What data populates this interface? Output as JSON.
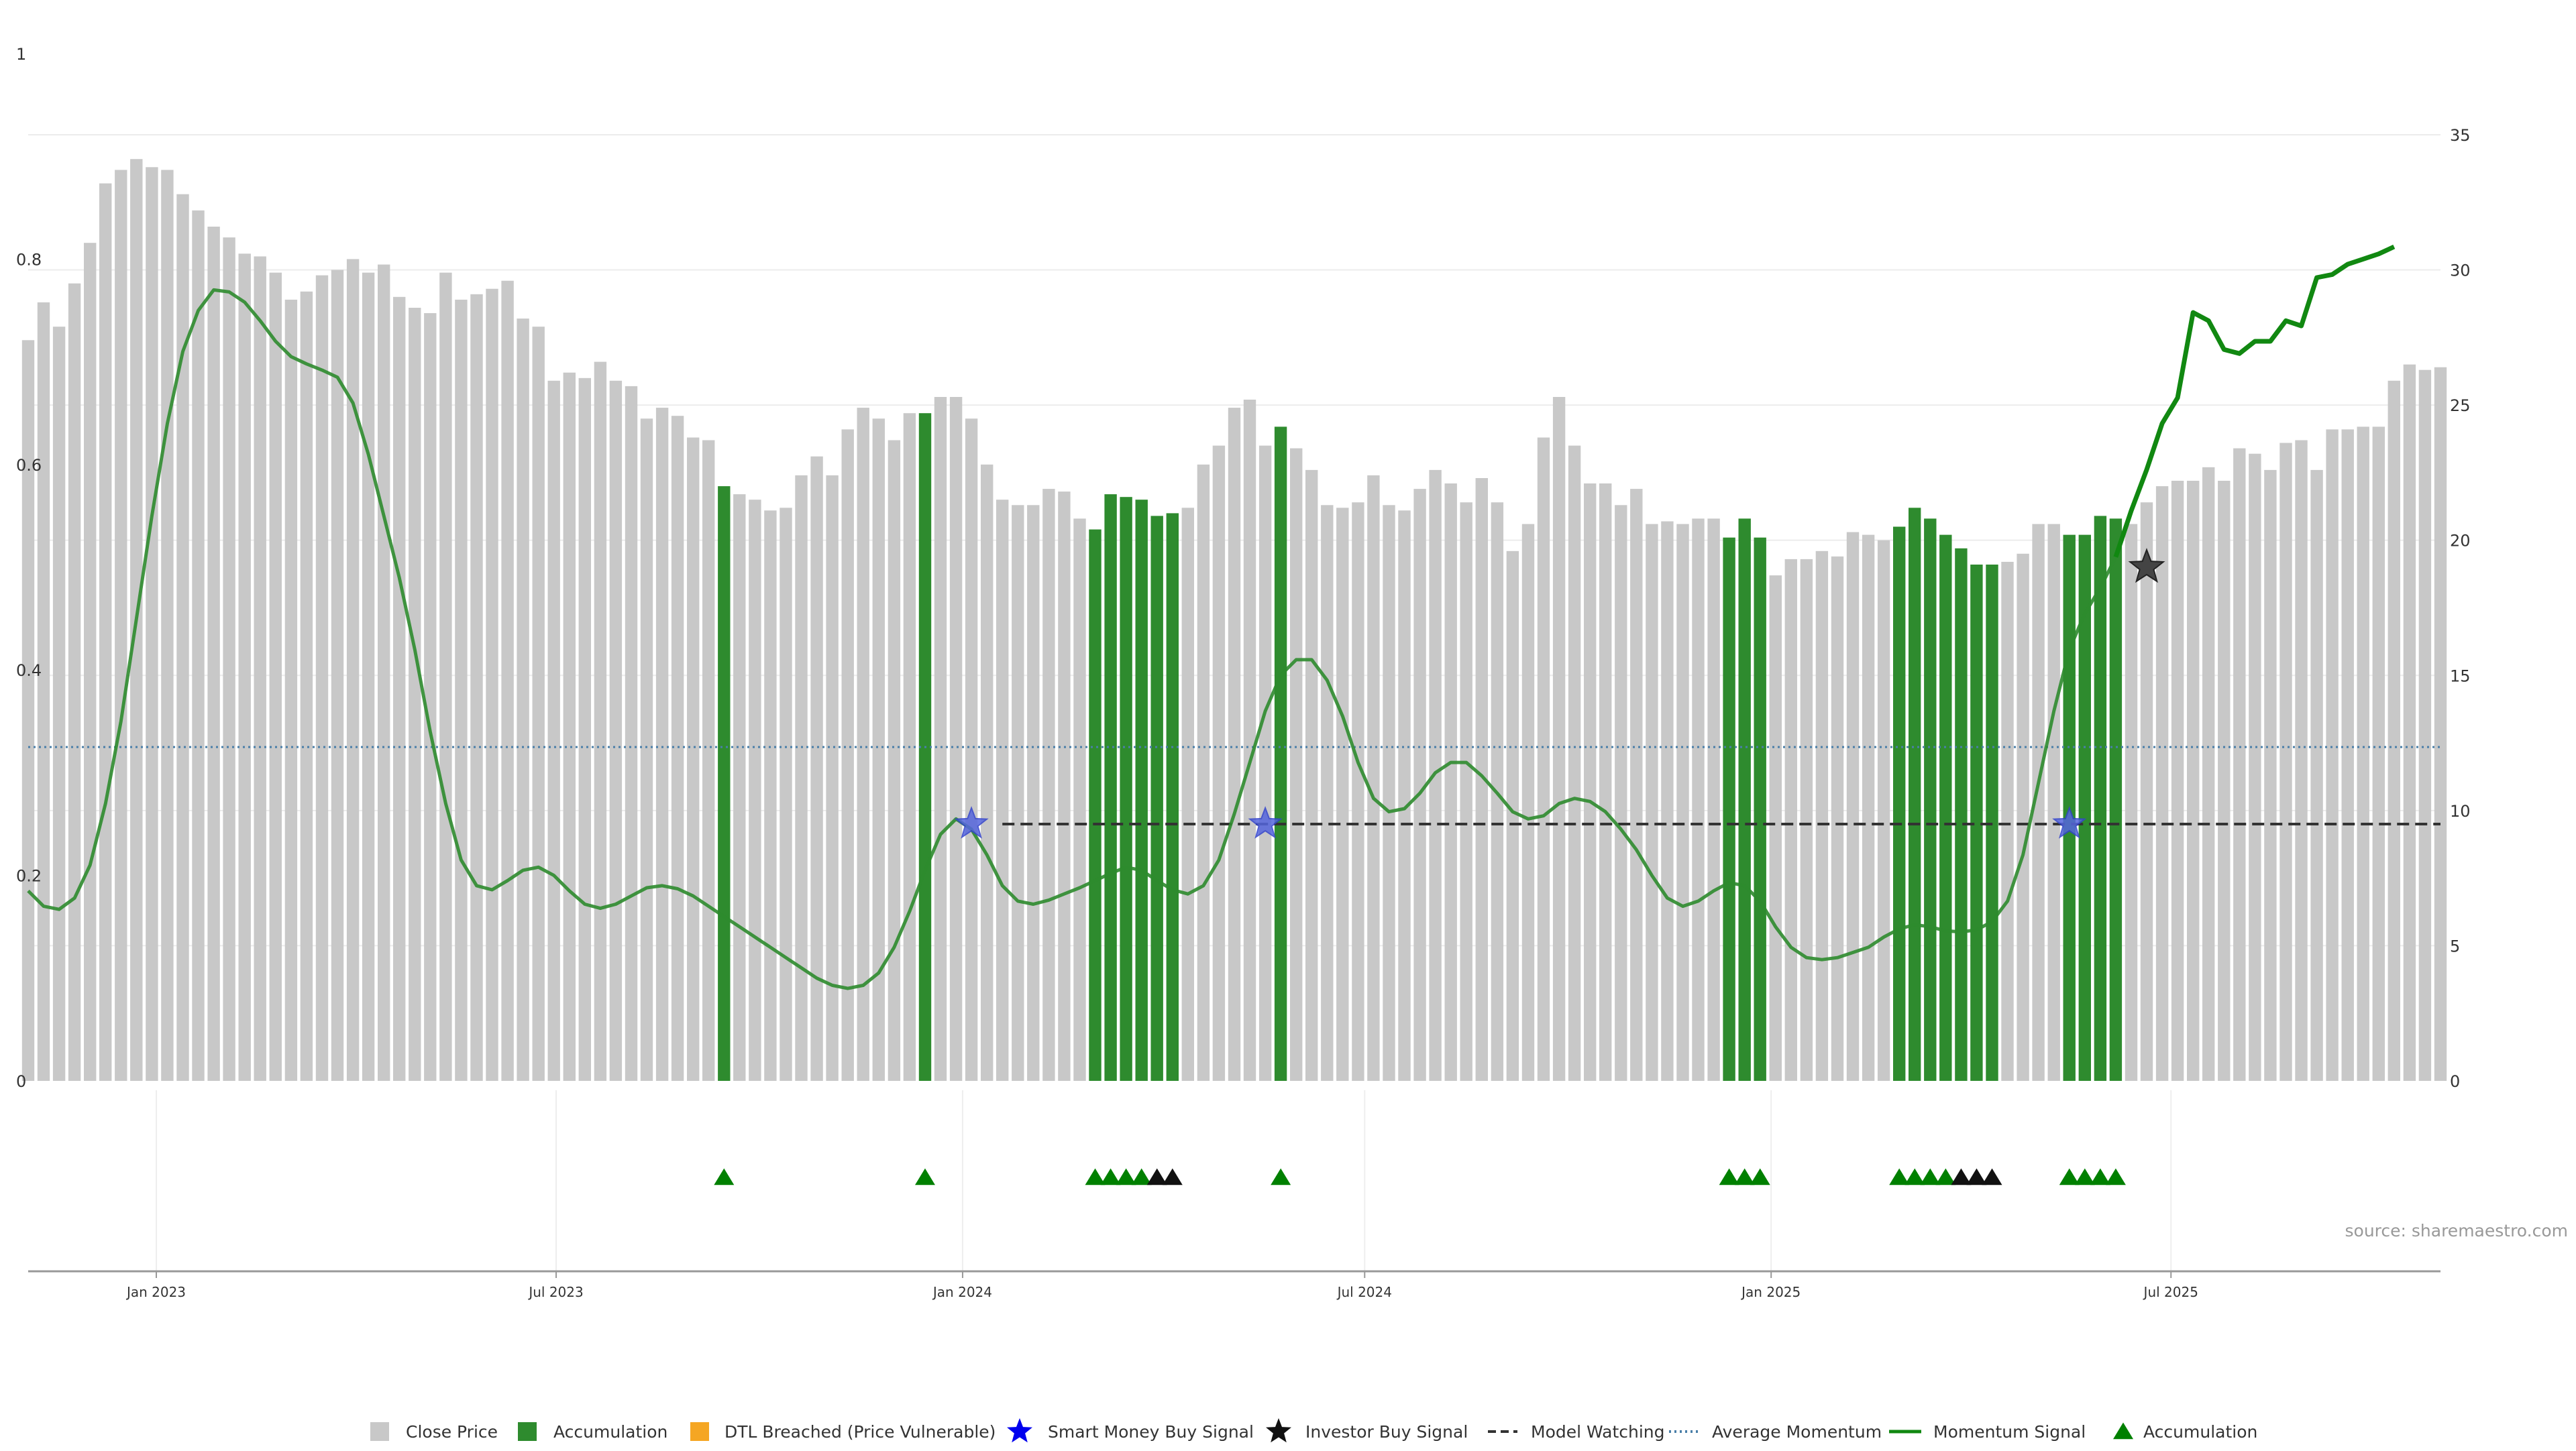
{
  "chart_data": {
    "type": "bar",
    "source": "source: sharemaestro.com",
    "left_axis": {
      "ticks": [
        0,
        0.2,
        0.4,
        0.6,
        0.8,
        1
      ],
      "tick_labels": [
        "0",
        "0.2",
        "0.4",
        "0.6",
        "0.8",
        "1"
      ],
      "ylim": [
        0,
        1
      ]
    },
    "right_axis": {
      "ticks": [
        0,
        5,
        10,
        15,
        20,
        25,
        30,
        35
      ],
      "tick_labels": [
        "0",
        "5",
        "10",
        "15",
        "20",
        "25",
        "30",
        "35"
      ],
      "ylim": [
        0,
        38
      ]
    },
    "x_axis": {
      "range": [
        "2022-11-04",
        "2025-10-31"
      ],
      "ticks": [
        "2023-01-01",
        "2023-07-01",
        "2024-01-01",
        "2024-07-01",
        "2025-01-01",
        "2025-07-01"
      ],
      "tick_labels": [
        "Jan 2023",
        "Jul 2023",
        "Jan 2024",
        "Jul 2024",
        "Jan 2025",
        "Jul 2025"
      ]
    },
    "grid": true,
    "legend_position": "bottom-center",
    "colors": {
      "close": "#c8c8c8",
      "accumulation": "#2e8b2e",
      "dtl": "#f5a623",
      "smart_money": "#0000ee",
      "investor": "#111111",
      "watching": "#333333",
      "avg_momentum": "#4a7fa8",
      "momentum": "#2e8b2e",
      "momentum_recent": "#118811",
      "marker_green": "#008000",
      "marker_black": "#111111"
    },
    "close_price": {
      "start_date": "2022-11-04",
      "interval_days": 7,
      "values": [
        27.4,
        28.8,
        27.9,
        29.5,
        31.0,
        33.2,
        33.7,
        34.1,
        33.8,
        33.7,
        32.8,
        32.2,
        31.6,
        31.2,
        30.6,
        30.5,
        29.9,
        28.9,
        29.2,
        29.8,
        30.0,
        30.4,
        29.9,
        30.2,
        29.0,
        28.6,
        28.4,
        29.9,
        28.9,
        29.1,
        29.3,
        29.6,
        28.2,
        27.9,
        25.9,
        26.2,
        26.0,
        26.6,
        25.9,
        25.7,
        24.5,
        24.9,
        24.6,
        23.8,
        23.7,
        22.0,
        21.7,
        21.5,
        21.1,
        21.2,
        22.4,
        23.1,
        22.4,
        24.1,
        24.9,
        24.5,
        23.7,
        24.7,
        24.7,
        25.3,
        25.3,
        24.5,
        22.8,
        21.5,
        21.3,
        21.3,
        21.9,
        21.8,
        20.8,
        20.4,
        21.7,
        21.6,
        21.5,
        20.9,
        21.0,
        21.2,
        22.8,
        23.5,
        24.9,
        25.2,
        23.5,
        24.2,
        23.4,
        22.6,
        21.3,
        21.2,
        21.4,
        22.4,
        21.3,
        21.1,
        21.9,
        22.6,
        22.1,
        21.4,
        22.3,
        21.4,
        19.6,
        20.6,
        23.8,
        25.3,
        23.5,
        22.1,
        22.1,
        21.3,
        21.9,
        20.6,
        20.7,
        20.6,
        20.8,
        20.8,
        20.1,
        20.8,
        20.1,
        18.7,
        19.3,
        19.3,
        19.6,
        19.4,
        20.3,
        20.2,
        20.0,
        20.5,
        21.2,
        20.8,
        20.2,
        19.7,
        19.1,
        19.1,
        19.2,
        19.5,
        20.6,
        20.6,
        20.2,
        20.2,
        20.9,
        20.8,
        20.6,
        21.4,
        22.0,
        22.2,
        22.2,
        22.7,
        22.2,
        23.4,
        23.2,
        22.6,
        23.6,
        23.7,
        22.6,
        24.1,
        24.1,
        24.2,
        24.2,
        25.9,
        26.5,
        26.3,
        26.4
      ]
    },
    "accumulation_bars_dates": [
      "2023-09-15",
      "2023-12-15",
      "2024-03-01",
      "2024-03-08",
      "2024-03-15",
      "2024-03-22",
      "2024-03-29",
      "2024-04-05",
      "2024-05-24",
      "2024-12-13",
      "2024-12-20",
      "2024-12-27",
      "2025-02-28",
      "2025-03-07",
      "2025-03-14",
      "2025-03-21",
      "2025-03-28",
      "2025-04-04",
      "2025-04-11",
      "2025-05-16",
      "2025-05-23",
      "2025-05-30",
      "2025-06-06"
    ],
    "momentum_signal": {
      "historical": [
        [
          "2022-11-04",
          0.185
        ],
        [
          "2022-11-11",
          0.17
        ],
        [
          "2022-11-18",
          0.167
        ],
        [
          "2022-11-25",
          0.178
        ],
        [
          "2022-12-02",
          0.21
        ],
        [
          "2022-12-09",
          0.27
        ],
        [
          "2022-12-16",
          0.35
        ],
        [
          "2022-12-23",
          0.45
        ],
        [
          "2022-12-30",
          0.55
        ],
        [
          "2023-01-06",
          0.64
        ],
        [
          "2023-01-13",
          0.71
        ],
        [
          "2023-01-20",
          0.75
        ],
        [
          "2023-01-27",
          0.77
        ],
        [
          "2023-02-03",
          0.768
        ],
        [
          "2023-02-10",
          0.758
        ],
        [
          "2023-02-17",
          0.74
        ],
        [
          "2023-02-24",
          0.72
        ],
        [
          "2023-03-03",
          0.705
        ],
        [
          "2023-03-10",
          0.698
        ],
        [
          "2023-03-17",
          0.692
        ],
        [
          "2023-03-24",
          0.685
        ],
        [
          "2023-03-31",
          0.66
        ],
        [
          "2023-04-07",
          0.61
        ],
        [
          "2023-04-14",
          0.55
        ],
        [
          "2023-04-21",
          0.49
        ],
        [
          "2023-04-28",
          0.42
        ],
        [
          "2023-05-05",
          0.34
        ],
        [
          "2023-05-12",
          0.27
        ],
        [
          "2023-05-19",
          0.215
        ],
        [
          "2023-05-26",
          0.19
        ],
        [
          "2023-06-02",
          0.186
        ],
        [
          "2023-06-09",
          0.195
        ],
        [
          "2023-06-16",
          0.205
        ],
        [
          "2023-06-23",
          0.208
        ],
        [
          "2023-06-30",
          0.2
        ],
        [
          "2023-07-07",
          0.185
        ],
        [
          "2023-07-14",
          0.172
        ],
        [
          "2023-07-21",
          0.168
        ],
        [
          "2023-07-28",
          0.172
        ],
        [
          "2023-08-04",
          0.18
        ],
        [
          "2023-08-11",
          0.188
        ],
        [
          "2023-08-18",
          0.19
        ],
        [
          "2023-08-25",
          0.187
        ],
        [
          "2023-09-01",
          0.18
        ],
        [
          "2023-09-08",
          0.17
        ],
        [
          "2023-09-15",
          0.16
        ],
        [
          "2023-09-22",
          0.15
        ],
        [
          "2023-09-29",
          0.14
        ],
        [
          "2023-10-06",
          0.13
        ],
        [
          "2023-10-13",
          0.12
        ],
        [
          "2023-10-20",
          0.11
        ],
        [
          "2023-10-27",
          0.1
        ],
        [
          "2023-11-03",
          0.093
        ],
        [
          "2023-11-10",
          0.09
        ],
        [
          "2023-11-17",
          0.093
        ],
        [
          "2023-11-24",
          0.105
        ],
        [
          "2023-12-01",
          0.13
        ],
        [
          "2023-12-08",
          0.165
        ],
        [
          "2023-12-15",
          0.205
        ],
        [
          "2023-12-22",
          0.24
        ],
        [
          "2023-12-29",
          0.255
        ],
        [
          "2024-01-05",
          0.245
        ],
        [
          "2024-01-12",
          0.22
        ],
        [
          "2024-01-19",
          0.19
        ],
        [
          "2024-01-26",
          0.175
        ],
        [
          "2024-02-02",
          0.172
        ],
        [
          "2024-02-09",
          0.176
        ],
        [
          "2024-02-16",
          0.182
        ],
        [
          "2024-02-23",
          0.188
        ],
        [
          "2024-03-01",
          0.195
        ],
        [
          "2024-03-08",
          0.202
        ],
        [
          "2024-03-15",
          0.208
        ],
        [
          "2024-03-22",
          0.205
        ],
        [
          "2024-03-29",
          0.195
        ],
        [
          "2024-04-05",
          0.186
        ],
        [
          "2024-04-12",
          0.182
        ],
        [
          "2024-04-19",
          0.19
        ],
        [
          "2024-04-26",
          0.215
        ],
        [
          "2024-05-03",
          0.26
        ],
        [
          "2024-05-10",
          0.31
        ],
        [
          "2024-05-17",
          0.36
        ],
        [
          "2024-05-24",
          0.395
        ],
        [
          "2024-05-31",
          0.41
        ],
        [
          "2024-06-07",
          0.41
        ],
        [
          "2024-06-14",
          0.39
        ],
        [
          "2024-06-21",
          0.355
        ],
        [
          "2024-06-28",
          0.31
        ],
        [
          "2024-07-05",
          0.275
        ],
        [
          "2024-07-12",
          0.262
        ],
        [
          "2024-07-19",
          0.265
        ],
        [
          "2024-07-26",
          0.28
        ],
        [
          "2024-08-02",
          0.3
        ],
        [
          "2024-08-09",
          0.31
        ],
        [
          "2024-08-16",
          0.31
        ],
        [
          "2024-08-23",
          0.297
        ],
        [
          "2024-08-30",
          0.28
        ],
        [
          "2024-09-06",
          0.262
        ],
        [
          "2024-09-13",
          0.255
        ],
        [
          "2024-09-20",
          0.258
        ],
        [
          "2024-09-27",
          0.27
        ],
        [
          "2024-10-04",
          0.275
        ],
        [
          "2024-10-11",
          0.272
        ],
        [
          "2024-10-18",
          0.262
        ],
        [
          "2024-10-25",
          0.245
        ],
        [
          "2024-11-01",
          0.225
        ],
        [
          "2024-11-08",
          0.2
        ],
        [
          "2024-11-15",
          0.178
        ],
        [
          "2024-11-22",
          0.17
        ],
        [
          "2024-11-29",
          0.175
        ],
        [
          "2024-12-06",
          0.185
        ],
        [
          "2024-12-13",
          0.193
        ],
        [
          "2024-12-20",
          0.19
        ],
        [
          "2024-12-27",
          0.175
        ],
        [
          "2025-01-03",
          0.15
        ],
        [
          "2025-01-10",
          0.13
        ],
        [
          "2025-01-17",
          0.12
        ],
        [
          "2025-01-24",
          0.118
        ],
        [
          "2025-01-31",
          0.12
        ],
        [
          "2025-02-07",
          0.125
        ],
        [
          "2025-02-14",
          0.13
        ],
        [
          "2025-02-21",
          0.14
        ],
        [
          "2025-02-28",
          0.148
        ],
        [
          "2025-03-07",
          0.152
        ],
        [
          "2025-03-14",
          0.15
        ],
        [
          "2025-03-21",
          0.146
        ],
        [
          "2025-03-28",
          0.145
        ],
        [
          "2025-04-04",
          0.147
        ],
        [
          "2025-04-11",
          0.155
        ],
        [
          "2025-04-18",
          0.175
        ],
        [
          "2025-04-25",
          0.22
        ],
        [
          "2025-05-02",
          0.29
        ],
        [
          "2025-05-09",
          0.36
        ],
        [
          "2025-05-16",
          0.42
        ],
        [
          "2025-05-23",
          0.455
        ],
        [
          "2025-05-30",
          0.48
        ],
        [
          "2025-06-06",
          0.51
        ]
      ],
      "recent": [
        [
          "2025-06-06",
          0.51
        ],
        [
          "2025-06-13",
          0.555
        ],
        [
          "2025-06-20",
          0.595
        ],
        [
          "2025-06-27",
          0.64
        ],
        [
          "2025-07-04",
          0.665
        ],
        [
          "2025-07-11",
          0.748
        ],
        [
          "2025-07-18",
          0.74
        ],
        [
          "2025-07-25",
          0.712
        ],
        [
          "2025-08-01",
          0.708
        ],
        [
          "2025-08-08",
          0.72
        ],
        [
          "2025-08-15",
          0.72
        ],
        [
          "2025-08-22",
          0.74
        ],
        [
          "2025-08-29",
          0.735
        ],
        [
          "2025-09-05",
          0.782
        ],
        [
          "2025-09-12",
          0.785
        ],
        [
          "2025-09-19",
          0.795
        ],
        [
          "2025-09-26",
          0.8
        ],
        [
          "2025-10-03",
          0.805
        ],
        [
          "2025-10-10",
          0.812
        ]
      ]
    },
    "average_momentum": 0.325,
    "model_watching": {
      "start": "2024-01-19",
      "end": "2025-10-31",
      "value": 0.25
    },
    "smart_money_signals": [
      [
        "2024-01-05",
        0.25
      ],
      [
        "2024-05-17",
        0.25
      ],
      [
        "2025-05-16",
        0.25
      ]
    ],
    "investor_signals": [
      [
        "2025-06-20",
        0.5
      ]
    ],
    "accumulation_markers": {
      "green": [
        "2023-09-15",
        "2023-12-15",
        "2024-03-01",
        "2024-03-08",
        "2024-03-15",
        "2024-03-22",
        "2024-05-24",
        "2024-12-13",
        "2024-12-20",
        "2024-12-27",
        "2025-02-28",
        "2025-03-07",
        "2025-03-14",
        "2025-03-21",
        "2025-05-16",
        "2025-05-23",
        "2025-05-30",
        "2025-06-06"
      ],
      "black": [
        "2024-03-29",
        "2024-04-05",
        "2025-03-28",
        "2025-04-04",
        "2025-04-11"
      ]
    },
    "legend": [
      {
        "label": "Close Price",
        "kind": "square",
        "color": "#c8c8c8"
      },
      {
        "label": "Accumulation",
        "kind": "square",
        "color": "#2e8b2e"
      },
      {
        "label": "DTL Breached (Price Vulnerable)",
        "kind": "square",
        "color": "#f5a623"
      },
      {
        "label": "Smart Money Buy Signal",
        "kind": "star",
        "color": "#0000ee"
      },
      {
        "label": "Investor Buy Signal",
        "kind": "star",
        "color": "#111111"
      },
      {
        "label": "Model Watching",
        "kind": "dashed",
        "color": "#333333"
      },
      {
        "label": "Average Momentum",
        "kind": "dotted",
        "color": "#4a7fa8"
      },
      {
        "label": "Momentum Signal",
        "kind": "line",
        "color": "#118811"
      },
      {
        "label": "Accumulation",
        "kind": "triangle",
        "color": "#008000"
      }
    ]
  }
}
